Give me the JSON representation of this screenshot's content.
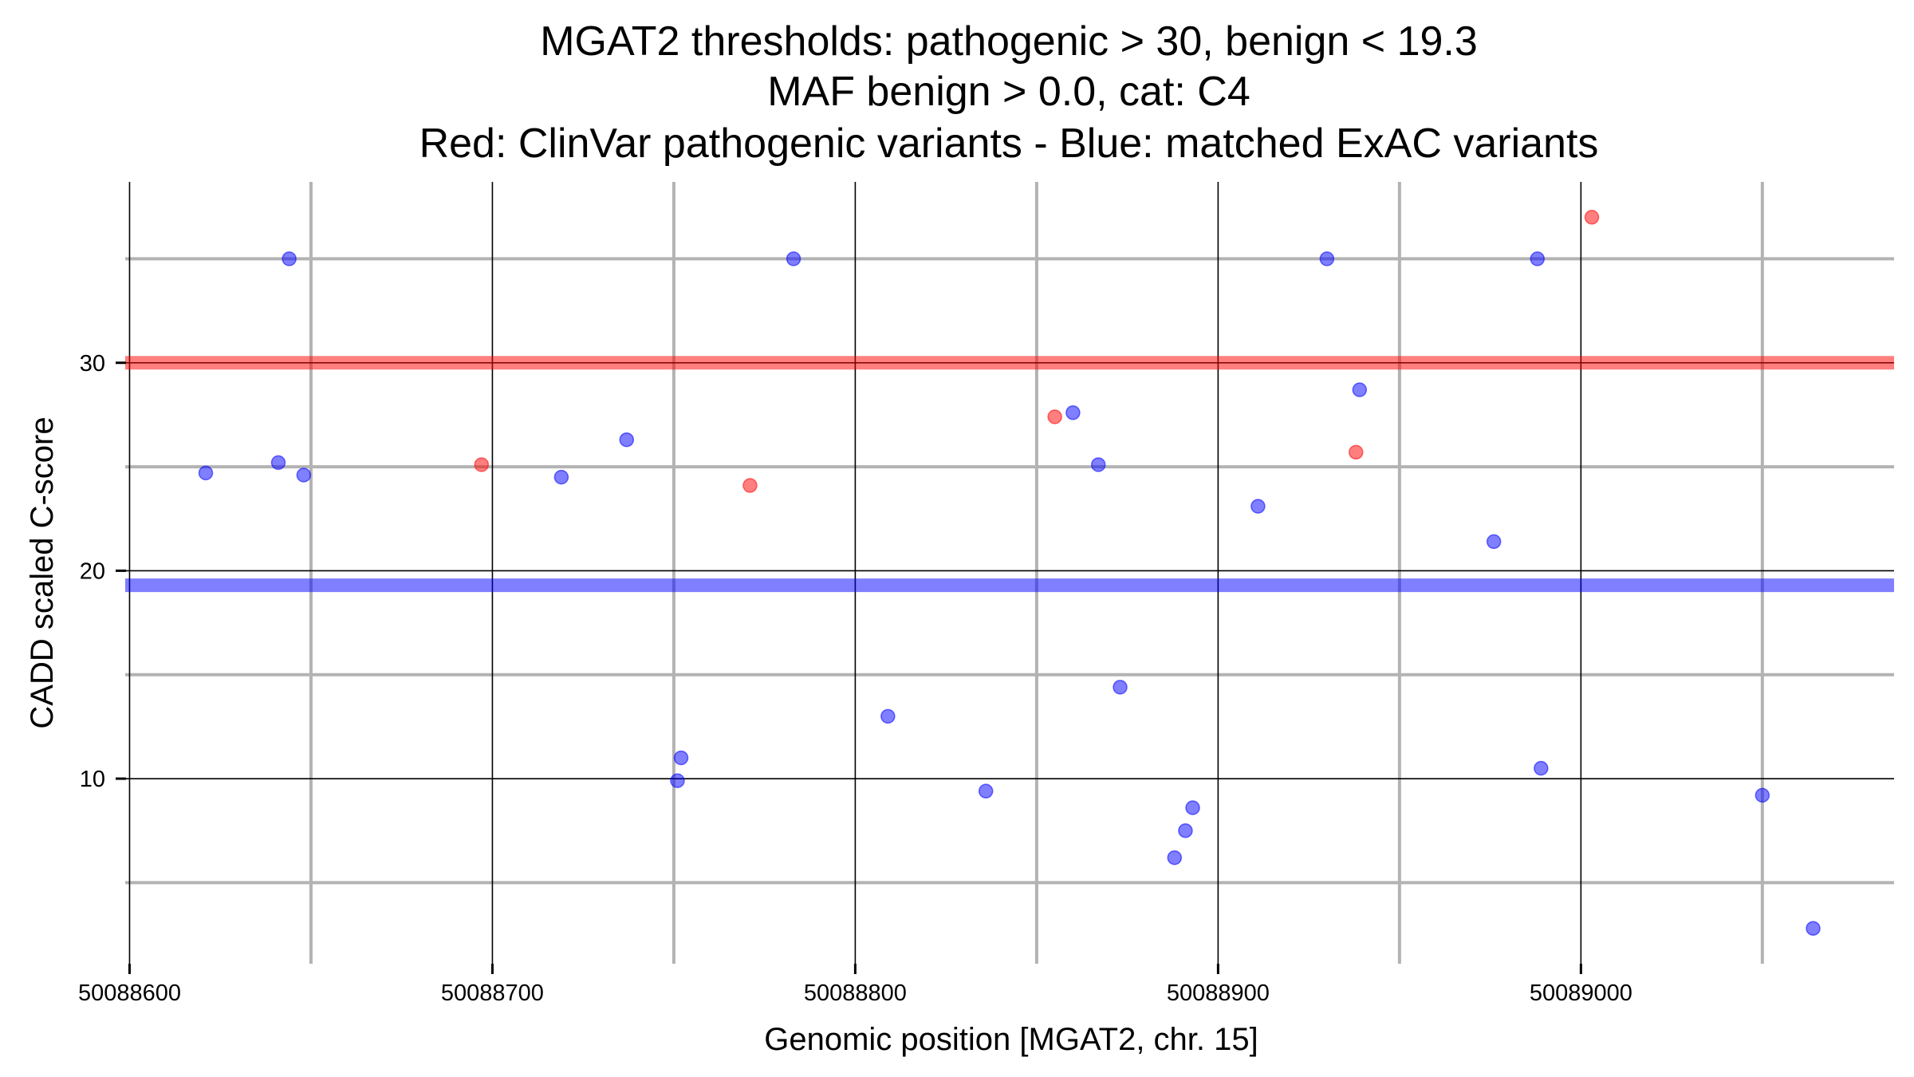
{
  "chart_data": {
    "type": "scatter",
    "title_lines": [
      "MGAT2 thresholds: pathogenic > 30, benign < 19.3",
      "MAF benign > 0.0, cat: C4",
      "Red: ClinVar pathogenic variants - Blue: matched ExAC variants"
    ],
    "xlabel": "Genomic position [MGAT2, chr. 15]",
    "ylabel": "CADD scaled C-score",
    "xlim": [
      50088598.8,
      50089086.3
    ],
    "ylim": [
      1.1,
      38.7
    ],
    "x_major_ticks": [
      50088600,
      50088700,
      50088800,
      50088900,
      50089000
    ],
    "x_tick_labels": [
      "50088600",
      "50088700",
      "50088800",
      "50088900",
      "50089000"
    ],
    "x_minor_ticks": [
      50088650,
      50088750,
      50088850,
      50088950,
      50089050
    ],
    "y_major_ticks": [
      10,
      20,
      30
    ],
    "y_tick_labels": [
      "10",
      "20",
      "30"
    ],
    "y_minor_ticks": [
      5,
      15,
      25,
      35
    ],
    "grid": true,
    "legend": "none (described in title)",
    "thresholds": [
      {
        "name": "pathogenic",
        "value": 30,
        "color": "#ff0000"
      },
      {
        "name": "benign",
        "value": 19.3,
        "color": "#0000ff"
      }
    ],
    "series": [
      {
        "name": "ClinVar pathogenic variants",
        "color": "#ff0000",
        "points": [
          {
            "x": 50088697,
            "y": 25.1
          },
          {
            "x": 50088771,
            "y": 24.1
          },
          {
            "x": 50088855,
            "y": 27.4
          },
          {
            "x": 50088938,
            "y": 25.7
          },
          {
            "x": 50089003,
            "y": 37.0
          }
        ]
      },
      {
        "name": "matched ExAC variants",
        "color": "#0000ff",
        "points": [
          {
            "x": 50088621,
            "y": 24.7
          },
          {
            "x": 50088641,
            "y": 25.2
          },
          {
            "x": 50088644,
            "y": 35.0
          },
          {
            "x": 50088648,
            "y": 24.6
          },
          {
            "x": 50088719,
            "y": 24.5
          },
          {
            "x": 50088737,
            "y": 26.3
          },
          {
            "x": 50088751,
            "y": 9.9
          },
          {
            "x": 50088752,
            "y": 11.0
          },
          {
            "x": 50088783,
            "y": 35.0
          },
          {
            "x": 50088809,
            "y": 13.0
          },
          {
            "x": 50088836,
            "y": 9.4
          },
          {
            "x": 50088860,
            "y": 27.6
          },
          {
            "x": 50088867,
            "y": 25.1
          },
          {
            "x": 50088873,
            "y": 14.4
          },
          {
            "x": 50088888,
            "y": 6.2
          },
          {
            "x": 50088891,
            "y": 7.5
          },
          {
            "x": 50088893,
            "y": 8.6
          },
          {
            "x": 50088911,
            "y": 23.1
          },
          {
            "x": 50088930,
            "y": 35.0
          },
          {
            "x": 50088939,
            "y": 28.7
          },
          {
            "x": 50088976,
            "y": 21.4
          },
          {
            "x": 50088988,
            "y": 35.0
          },
          {
            "x": 50088989,
            "y": 10.5
          },
          {
            "x": 50089050,
            "y": 9.2
          },
          {
            "x": 50089064,
            "y": 2.8
          }
        ]
      }
    ]
  }
}
